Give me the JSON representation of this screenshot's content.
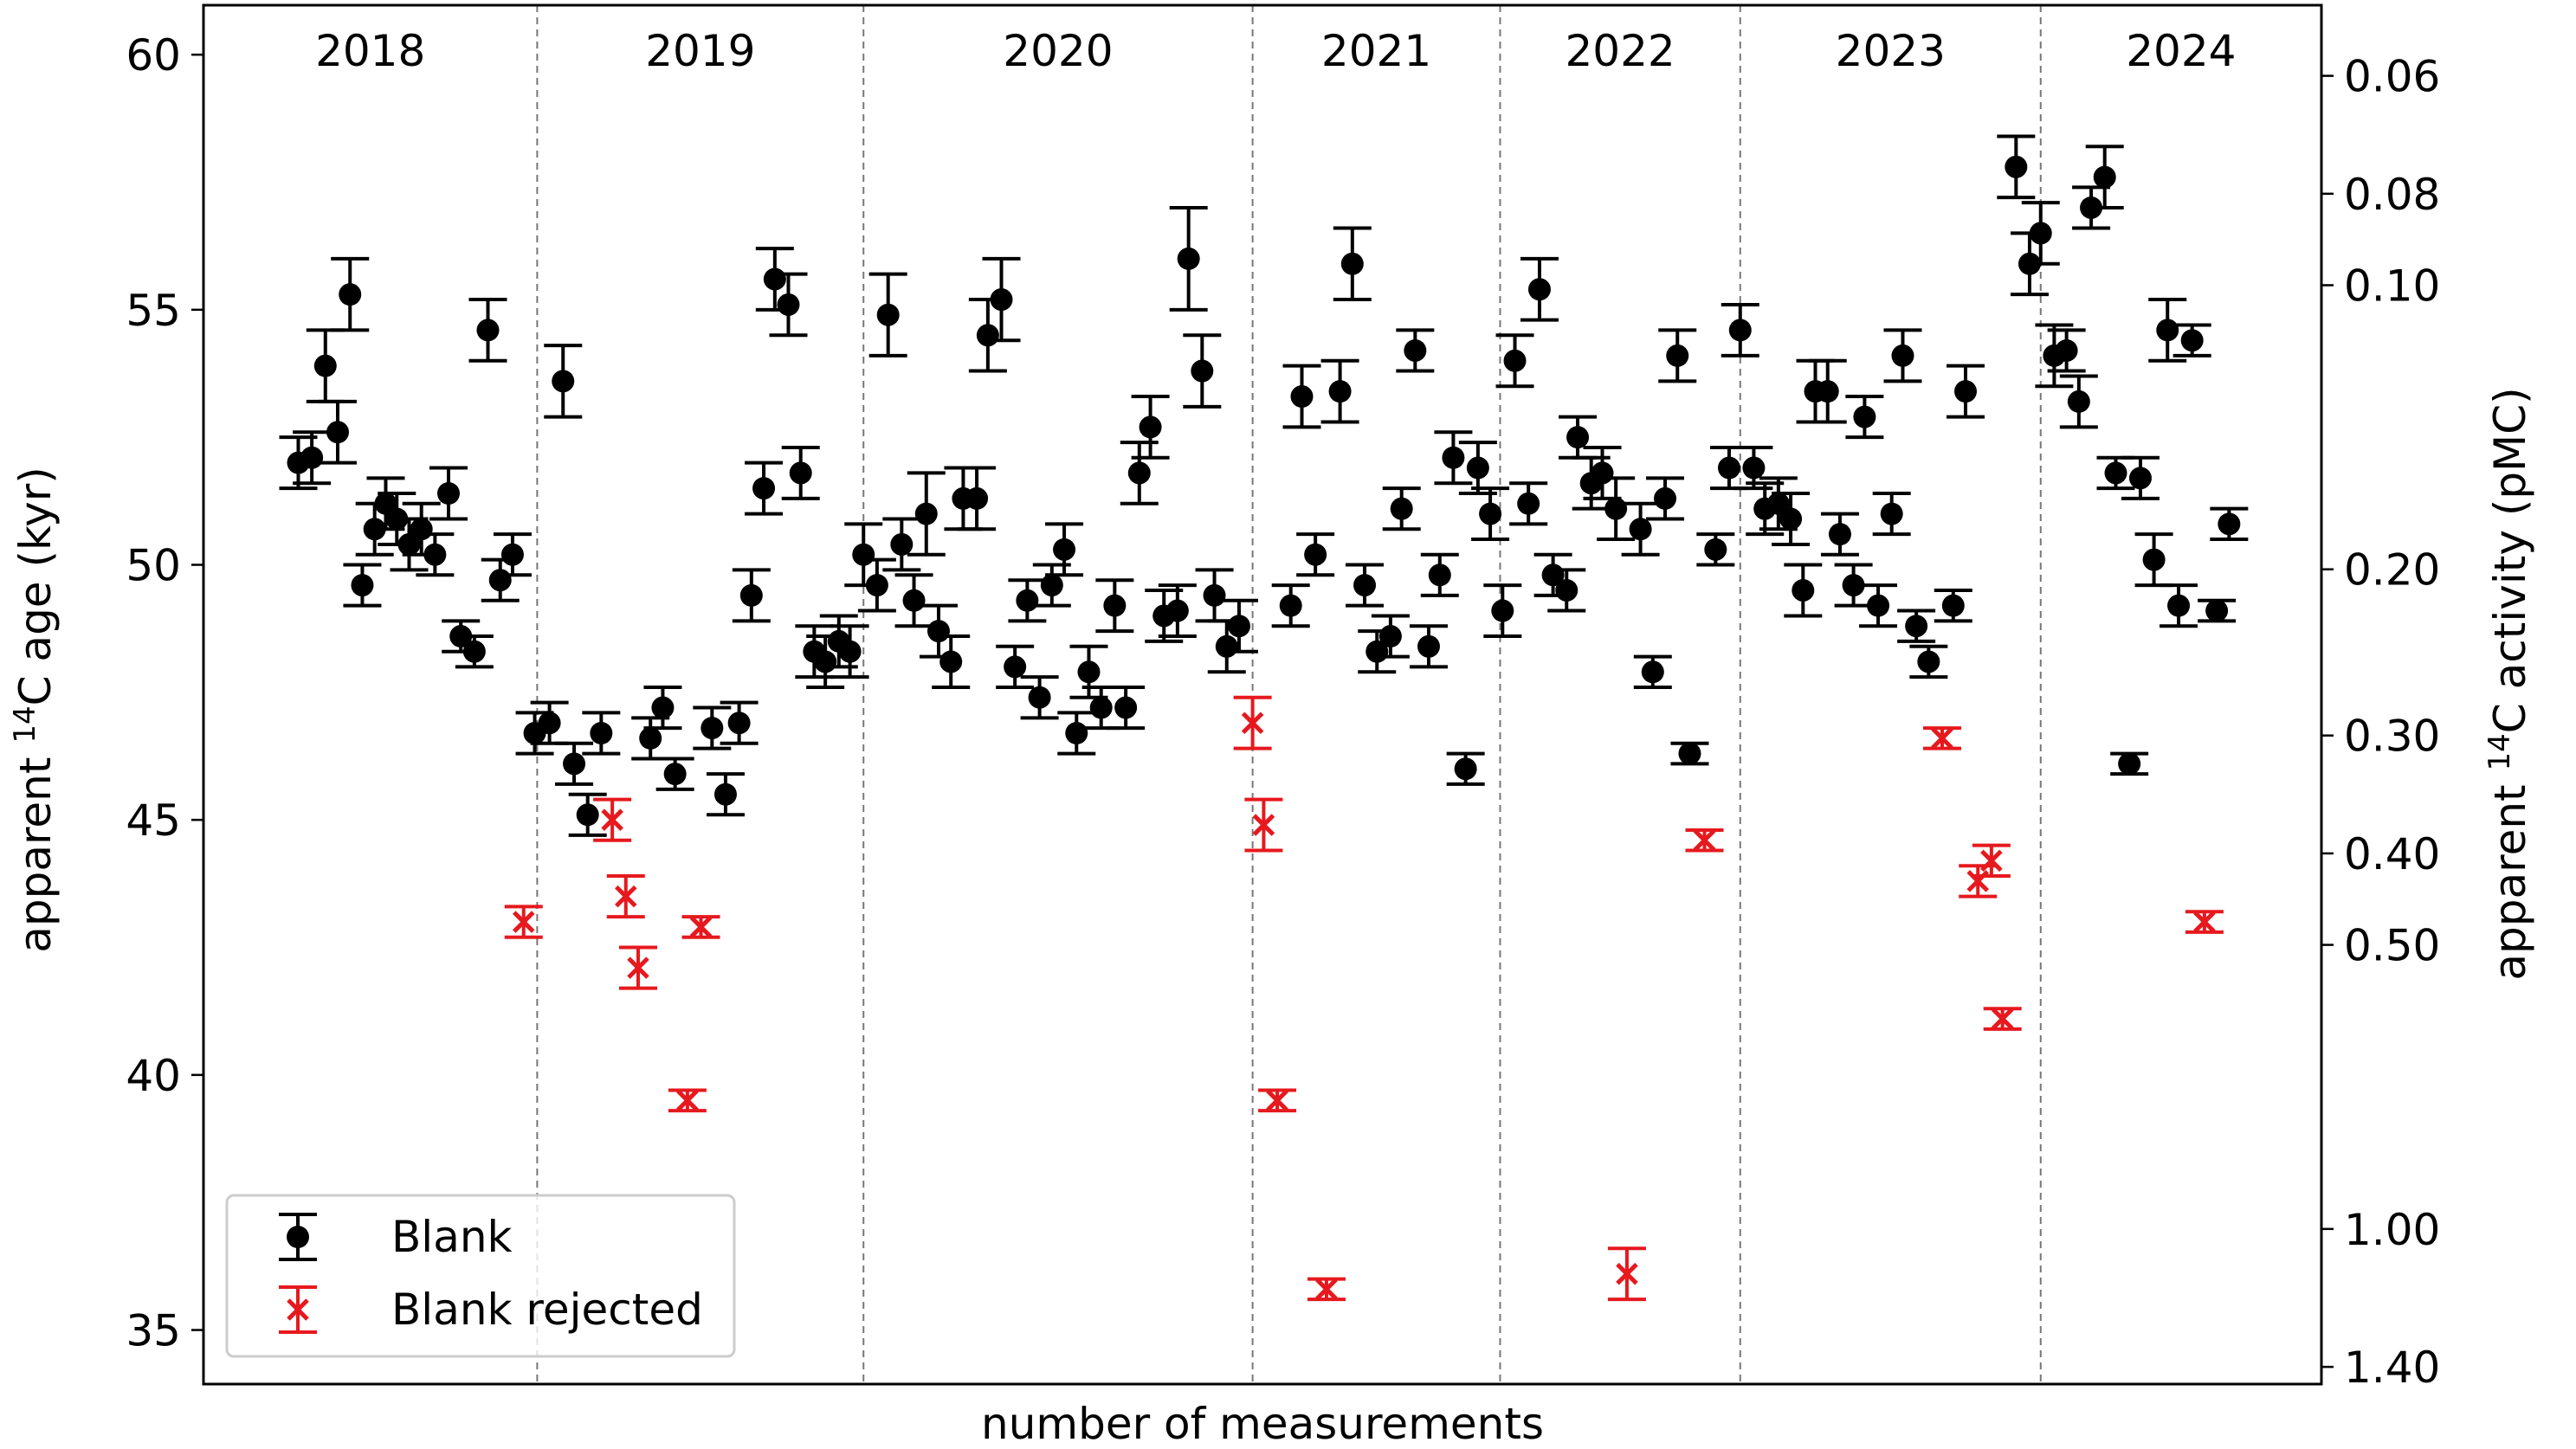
{
  "chart_data": {
    "type": "errorbar-scatter",
    "x_label": "number of measurements",
    "y_label": {
      "prefix": "apparent ",
      "sup": "14",
      "suffix": "C age (kyr)"
    },
    "y2_label": {
      "prefix": "apparent ",
      "sup": "14",
      "suffix": "C activity (pMC)"
    },
    "xlim": [
      0,
      172
    ],
    "ylim": [
      33.94,
      60.97
    ],
    "yticks": [
      35,
      40,
      45,
      50,
      55,
      60
    ],
    "y2lim": [
      0.0505,
      1.46
    ],
    "y2log": true,
    "y2inverted": true,
    "y2ticks": [
      0.06,
      0.08,
      {
        "value": 0.1,
        "label": "0.10"
      },
      {
        "value": 0.2,
        "label": "0.20"
      },
      {
        "value": 0.3,
        "label": "0.30"
      },
      {
        "value": 0.4,
        "label": "0.40"
      },
      {
        "value": 0.5,
        "label": "0.50"
      },
      {
        "value": 1,
        "label": "1.00"
      },
      {
        "value": 1.4,
        "label": "1.40"
      }
    ],
    "year_boundaries": [
      27.1,
      53.6,
      85.2,
      105.3,
      124.8,
      149.2
    ],
    "year_labels": [
      "2018",
      "2019",
      "2020",
      "2021",
      "2022",
      "2023",
      "2024"
    ],
    "legend": "lower left",
    "series": [
      {
        "name": "Blank",
        "color": "#000000",
        "marker": "o",
        "x": [
          7.7,
          8.8,
          9.9,
          10.9,
          11.9,
          12.9,
          13.9,
          14.8,
          15.7,
          16.7,
          17.7,
          18.8,
          19.9,
          20.9,
          22.0,
          23.1,
          24.1,
          25.1,
          26.9,
          28.1,
          29.2,
          30.1,
          31.2,
          32.3,
          36.3,
          37.3,
          38.3,
          41.3,
          42.4,
          43.5,
          44.5,
          45.5,
          46.4,
          47.5,
          48.5,
          49.6,
          50.5,
          51.6,
          52.5,
          53.6,
          54.7,
          55.6,
          56.7,
          57.7,
          58.7,
          59.7,
          60.7,
          61.7,
          62.8,
          63.7,
          64.8,
          65.9,
          66.9,
          67.9,
          68.9,
          69.9,
          70.9,
          71.9,
          72.9,
          74.0,
          74.9,
          76.0,
          76.9,
          78.0,
          79.1,
          80.0,
          81.1,
          82.1,
          83.1,
          84.1,
          88.3,
          89.2,
          90.3,
          92.3,
          93.3,
          94.3,
          95.3,
          96.4,
          97.3,
          98.4,
          99.5,
          100.4,
          101.5,
          102.5,
          103.5,
          104.5,
          105.5,
          106.5,
          107.6,
          108.5,
          109.6,
          110.7,
          111.6,
          112.7,
          113.6,
          114.7,
          116.7,
          117.7,
          118.7,
          119.7,
          120.7,
          122.8,
          123.9,
          124.8,
          125.9,
          126.8,
          127.9,
          128.9,
          129.9,
          130.9,
          131.9,
          132.9,
          134.0,
          134.9,
          136.0,
          137.1,
          138.0,
          139.1,
          140.1,
          142.1,
          143.1,
          147.2,
          148.3,
          149.2,
          150.3,
          151.3,
          152.3,
          153.3,
          154.4,
          155.3,
          156.4,
          157.3,
          158.4,
          159.5,
          160.4,
          161.5,
          163.5,
          164.5
        ],
        "values": [
          52.0,
          52.1,
          53.9,
          52.6,
          55.3,
          49.6,
          50.7,
          51.2,
          50.9,
          50.4,
          50.7,
          50.2,
          51.4,
          48.6,
          48.3,
          54.6,
          49.7,
          50.2,
          46.7,
          46.9,
          53.6,
          46.1,
          45.1,
          46.7,
          46.6,
          47.2,
          45.9,
          46.8,
          45.5,
          46.9,
          49.4,
          51.5,
          55.6,
          55.1,
          51.8,
          48.3,
          48.1,
          48.5,
          48.3,
          50.2,
          49.6,
          54.9,
          50.4,
          49.3,
          51.0,
          48.7,
          48.1,
          51.3,
          51.3,
          54.5,
          55.2,
          48.0,
          49.3,
          47.4,
          49.6,
          50.3,
          46.7,
          47.9,
          47.2,
          49.2,
          47.2,
          51.8,
          52.7,
          49.0,
          49.1,
          56.0,
          53.8,
          49.4,
          48.4,
          48.8,
          49.2,
          53.3,
          50.2,
          53.4,
          55.9,
          49.6,
          48.3,
          48.6,
          51.1,
          54.2,
          48.4,
          49.8,
          52.1,
          46.0,
          51.9,
          51.0,
          49.1,
          54.0,
          51.2,
          55.4,
          49.8,
          49.5,
          52.5,
          51.6,
          51.8,
          51.1,
          50.7,
          47.9,
          51.3,
          54.1,
          46.3,
          50.3,
          51.9,
          54.6,
          51.9,
          51.1,
          51.2,
          50.9,
          49.5,
          53.4,
          53.4,
          50.6,
          49.6,
          52.9,
          49.2,
          51.0,
          54.1,
          48.8,
          48.1,
          49.2,
          53.4,
          57.8,
          55.9,
          56.5,
          54.1,
          54.2,
          53.2,
          57.0,
          57.6,
          51.8,
          46.1,
          51.7,
          50.1,
          54.6,
          49.2,
          54.4,
          49.1,
          50.8
        ],
        "errors": [
          0.5,
          0.5,
          0.7,
          0.6,
          0.7,
          0.4,
          0.5,
          0.5,
          0.5,
          0.5,
          0.5,
          0.4,
          0.5,
          0.3,
          0.3,
          0.6,
          0.4,
          0.4,
          0.4,
          0.4,
          0.7,
          0.4,
          0.4,
          0.4,
          0.4,
          0.4,
          0.3,
          0.4,
          0.4,
          0.4,
          0.5,
          0.5,
          0.6,
          0.6,
          0.5,
          0.5,
          0.5,
          0.5,
          0.5,
          0.6,
          0.5,
          0.8,
          0.5,
          0.5,
          0.8,
          0.5,
          0.5,
          0.6,
          0.6,
          0.7,
          0.8,
          0.4,
          0.4,
          0.4,
          0.4,
          0.5,
          0.4,
          0.5,
          0.4,
          0.5,
          0.4,
          0.6,
          0.6,
          0.5,
          0.5,
          1.0,
          0.7,
          0.5,
          0.5,
          0.5,
          0.4,
          0.6,
          0.4,
          0.6,
          0.7,
          0.4,
          0.4,
          0.4,
          0.4,
          0.4,
          0.4,
          0.4,
          0.5,
          0.3,
          0.5,
          0.5,
          0.5,
          0.5,
          0.4,
          0.6,
          0.4,
          0.4,
          0.4,
          0.5,
          0.5,
          0.6,
          0.5,
          0.3,
          0.4,
          0.5,
          0.2,
          0.3,
          0.4,
          0.5,
          0.4,
          0.5,
          0.5,
          0.5,
          0.5,
          0.6,
          0.6,
          0.4,
          0.4,
          0.4,
          0.4,
          0.4,
          0.5,
          0.3,
          0.3,
          0.3,
          0.5,
          0.6,
          0.6,
          0.6,
          0.6,
          0.4,
          0.5,
          0.4,
          0.6,
          0.3,
          0.2,
          0.4,
          0.5,
          0.6,
          0.4,
          0.3,
          0.2,
          0.3
        ]
      },
      {
        "name": "Blank rejected",
        "color": "#e6191e",
        "marker": "x",
        "x": [
          26.0,
          33.2,
          34.3,
          35.3,
          39.3,
          40.4,
          85.2,
          86.1,
          87.2,
          91.2,
          115.6,
          121.9,
          141.2,
          144.1,
          145.2,
          146.1,
          162.5
        ],
        "values": [
          43.0,
          45.0,
          43.5,
          42.1,
          39.5,
          42.9,
          46.9,
          44.9,
          39.5,
          35.8,
          36.1,
          44.6,
          46.6,
          43.8,
          44.2,
          41.1,
          43.0
        ],
        "errors": [
          0.3,
          0.4,
          0.4,
          0.4,
          0.2,
          0.2,
          0.5,
          0.5,
          0.2,
          0.2,
          0.5,
          0.2,
          0.2,
          0.3,
          0.3,
          0.2,
          0.2
        ]
      }
    ]
  }
}
